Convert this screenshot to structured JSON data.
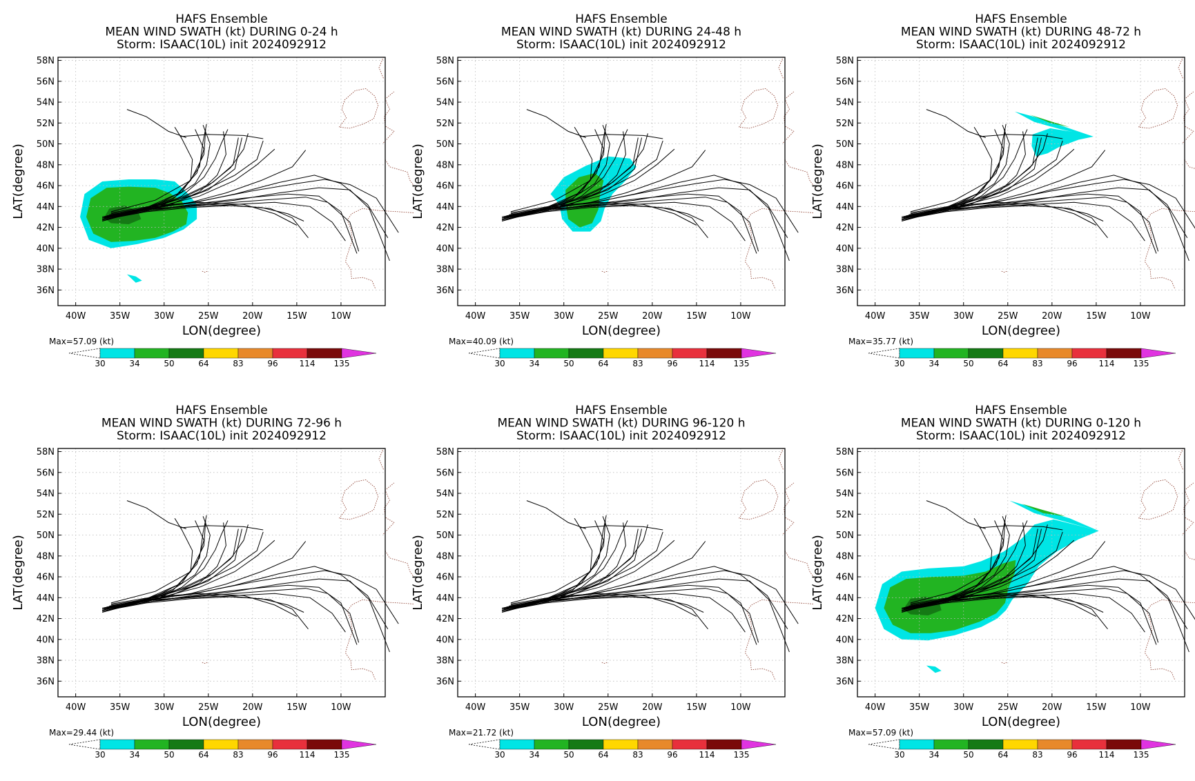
{
  "panels": [
    {
      "title1": "HAFS Ensemble",
      "title2": "MEAN WIND SWATH (kt) DURING  0-24 h",
      "title3": "Storm: ISAAC(10L) init 2024092912",
      "max_label": "Max=57.09 (kt)",
      "swath": "s0"
    },
    {
      "title1": "HAFS Ensemble",
      "title2": "MEAN WIND SWATH (kt) DURING 24-48 h",
      "title3": "Storm: ISAAC(10L) init 2024092912",
      "max_label": "Max=40.09 (kt)",
      "swath": "s1"
    },
    {
      "title1": "HAFS Ensemble",
      "title2": "MEAN WIND SWATH (kt) DURING 48-72 h",
      "title3": "Storm: ISAAC(10L) init 2024092912",
      "max_label": "Max=35.77 (kt)",
      "swath": "s2"
    },
    {
      "title1": "HAFS Ensemble",
      "title2": "MEAN WIND SWATH (kt) DURING 72-96 h",
      "title3": "Storm: ISAAC(10L) init 2024092912",
      "max_label": "Max=29.44 (kt)",
      "swath": "none"
    },
    {
      "title1": "HAFS Ensemble",
      "title2": "MEAN WIND SWATH (kt) DURING 96-120 h",
      "title3": "Storm: ISAAC(10L) init 2024092912",
      "max_label": "Max=21.72 (kt)",
      "swath": "none"
    },
    {
      "title1": "HAFS Ensemble",
      "title2": "MEAN WIND SWATH (kt) DURING 0-120 h",
      "title3": "Storm: ISAAC(10L) init 2024092912",
      "max_label": "Max=57.09 (kt)",
      "swath": "s5"
    }
  ],
  "axes": {
    "xlabel": "LON(degree)",
    "ylabel": "LAT(degree)",
    "lon_ticks": [
      "40W",
      "35W",
      "30W",
      "25W",
      "20W",
      "15W",
      "10W"
    ],
    "lat_ticks": [
      "58N",
      "56N",
      "54N",
      "52N",
      "50N",
      "48N",
      "46N",
      "44N",
      "42N",
      "40N",
      "38N",
      "36N"
    ]
  },
  "colorbar": {
    "labels": [
      "30",
      "34",
      "50",
      "64",
      "83",
      "96",
      "114",
      "135"
    ],
    "colors": [
      "#00e5e5",
      "#22b422",
      "#157a15",
      "#ffd700",
      "#e8892a",
      "#e8303c",
      "#7a0a0a",
      "#e033e0"
    ]
  }
}
